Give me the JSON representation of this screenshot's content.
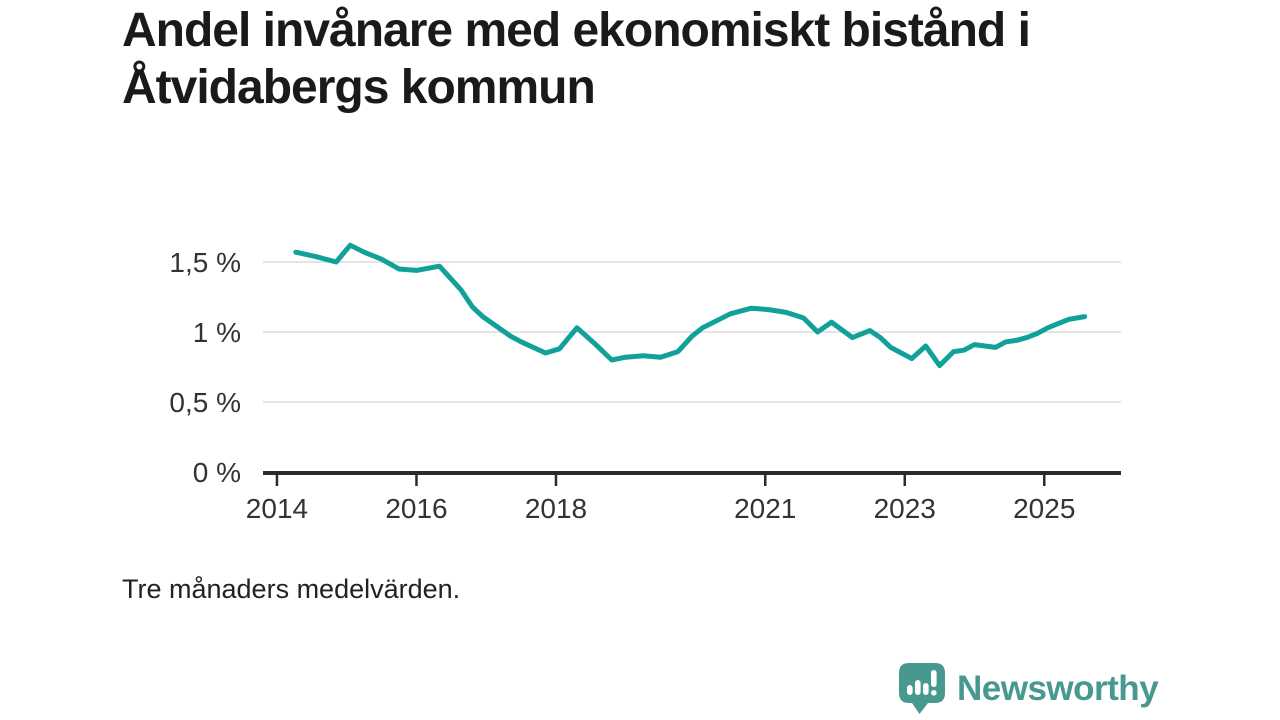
{
  "title": "Andel invånare med ekonomiskt bistånd i Åtvidabergs kommun",
  "footnote": "Tre månaders medelvärden.",
  "branding": {
    "name": "Newsworthy",
    "logo_icon": "newsworthy-bar-chart-speech-bubble-icon",
    "color": "#47988f"
  },
  "colors": {
    "line": "#12a19a",
    "grid": "#dcdcdc",
    "axis": "#2b2b2b",
    "title_text": "#1a1a1a",
    "tick_text": "#333333"
  },
  "chart_data": {
    "type": "line",
    "title": "Andel invånare med ekonomiskt bistånd i Åtvidabergs kommun",
    "xlabel": "",
    "ylabel": "",
    "unit": "%",
    "grid": "horizontal",
    "legend": "none",
    "xlim": [
      2013.8,
      2026.1
    ],
    "ylim": [
      0,
      1.75
    ],
    "x_ticks": [
      {
        "value": 2014,
        "label": "2014"
      },
      {
        "value": 2016,
        "label": "2016"
      },
      {
        "value": 2018,
        "label": "2018"
      },
      {
        "value": 2021,
        "label": "2021"
      },
      {
        "value": 2023,
        "label": "2023"
      },
      {
        "value": 2025,
        "label": "2025"
      }
    ],
    "y_ticks": [
      {
        "value": 0,
        "label": "0 %"
      },
      {
        "value": 0.5,
        "label": "0,5 %"
      },
      {
        "value": 1,
        "label": "1 %"
      },
      {
        "value": 1.5,
        "label": "1,5 %"
      }
    ],
    "series": [
      {
        "name": "Andel invånare med ekonomiskt bistånd (%)",
        "color": "#12a19a",
        "points": [
          [
            2014.27,
            1.57
          ],
          [
            2014.55,
            1.54
          ],
          [
            2014.85,
            1.5
          ],
          [
            2015.05,
            1.62
          ],
          [
            2015.25,
            1.57
          ],
          [
            2015.5,
            1.52
          ],
          [
            2015.75,
            1.45
          ],
          [
            2016.0,
            1.44
          ],
          [
            2016.33,
            1.47
          ],
          [
            2016.64,
            1.3
          ],
          [
            2016.8,
            1.18
          ],
          [
            2016.95,
            1.11
          ],
          [
            2017.15,
            1.04
          ],
          [
            2017.35,
            0.97
          ],
          [
            2017.5,
            0.93
          ],
          [
            2017.85,
            0.85
          ],
          [
            2018.05,
            0.88
          ],
          [
            2018.3,
            1.03
          ],
          [
            2018.55,
            0.92
          ],
          [
            2018.8,
            0.8
          ],
          [
            2019.0,
            0.82
          ],
          [
            2019.25,
            0.83
          ],
          [
            2019.5,
            0.82
          ],
          [
            2019.75,
            0.86
          ],
          [
            2019.95,
            0.97
          ],
          [
            2020.1,
            1.03
          ],
          [
            2020.3,
            1.08
          ],
          [
            2020.5,
            1.13
          ],
          [
            2020.8,
            1.17
          ],
          [
            2021.05,
            1.16
          ],
          [
            2021.3,
            1.14
          ],
          [
            2021.55,
            1.1
          ],
          [
            2021.75,
            1.0
          ],
          [
            2021.95,
            1.07
          ],
          [
            2022.25,
            0.96
          ],
          [
            2022.5,
            1.01
          ],
          [
            2022.65,
            0.96
          ],
          [
            2022.8,
            0.89
          ],
          [
            2022.95,
            0.85
          ],
          [
            2023.1,
            0.81
          ],
          [
            2023.3,
            0.9
          ],
          [
            2023.5,
            0.76
          ],
          [
            2023.7,
            0.86
          ],
          [
            2023.85,
            0.87
          ],
          [
            2024.0,
            0.91
          ],
          [
            2024.3,
            0.89
          ],
          [
            2024.45,
            0.93
          ],
          [
            2024.6,
            0.94
          ],
          [
            2024.75,
            0.96
          ],
          [
            2024.9,
            0.99
          ],
          [
            2025.05,
            1.03
          ],
          [
            2025.2,
            1.06
          ],
          [
            2025.35,
            1.09
          ],
          [
            2025.58,
            1.11
          ]
        ]
      }
    ]
  }
}
